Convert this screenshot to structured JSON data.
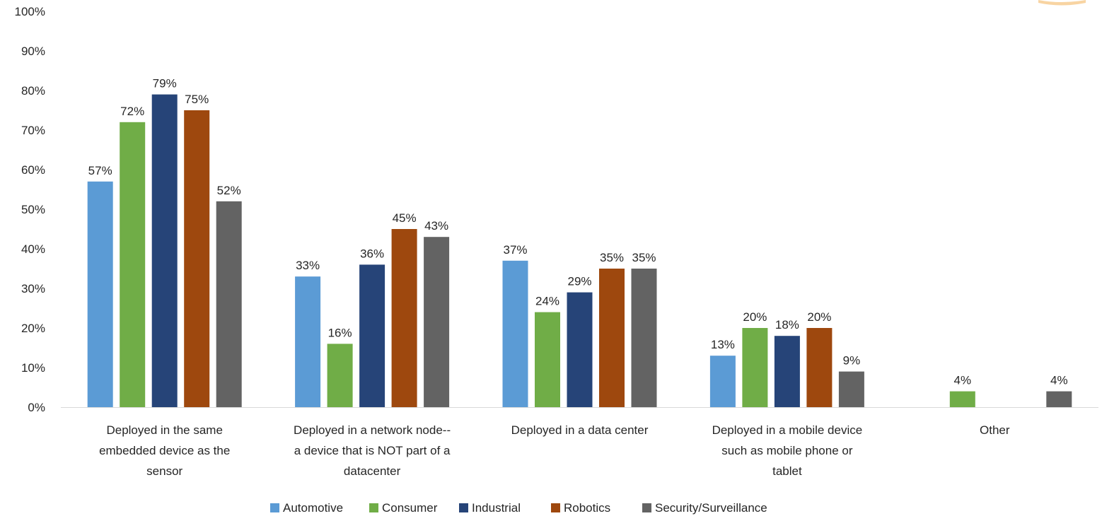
{
  "chart_data": {
    "type": "bar",
    "categories": [
      [
        "Deployed in the same",
        "embedded device as the",
        "sensor"
      ],
      [
        "Deployed in a network node--",
        "a device that is NOT part of a",
        "datacenter"
      ],
      [
        "Deployed in a data center"
      ],
      [
        "Deployed in a mobile device",
        "such as mobile phone or",
        "tablet"
      ],
      [
        "Other"
      ]
    ],
    "series": [
      {
        "name": "Automotive",
        "color": "#5b9bd5",
        "values": [
          57,
          33,
          37,
          13,
          null
        ],
        "labels": [
          "57%",
          "33%",
          "37%",
          "13%",
          ""
        ]
      },
      {
        "name": "Consumer",
        "color": "#70ad47",
        "values": [
          72,
          16,
          24,
          20,
          4
        ],
        "labels": [
          "72%",
          "16%",
          "24%",
          "20%",
          "4%"
        ]
      },
      {
        "name": "Industrial",
        "color": "#264478",
        "values": [
          79,
          36,
          29,
          18,
          null
        ],
        "labels": [
          "79%",
          "36%",
          "29%",
          "18%",
          ""
        ]
      },
      {
        "name": "Robotics",
        "color": "#9e480e",
        "values": [
          75,
          45,
          35,
          20,
          null
        ],
        "labels": [
          "75%",
          "45%",
          "35%",
          "20%",
          ""
        ]
      },
      {
        "name": "Security/Surveillance",
        "color": "#636363",
        "values": [
          52,
          43,
          35,
          9,
          4
        ],
        "labels": [
          "52%",
          "43%",
          "35%",
          "9%",
          "4%"
        ]
      }
    ],
    "yticks": [
      "0%",
      "10%",
      "20%",
      "30%",
      "40%",
      "50%",
      "60%",
      "70%",
      "80%",
      "90%",
      "100%"
    ],
    "ylim": [
      0,
      100
    ],
    "grid": false,
    "legend": "bottom",
    "title": "",
    "xlabel": "",
    "ylabel": ""
  }
}
